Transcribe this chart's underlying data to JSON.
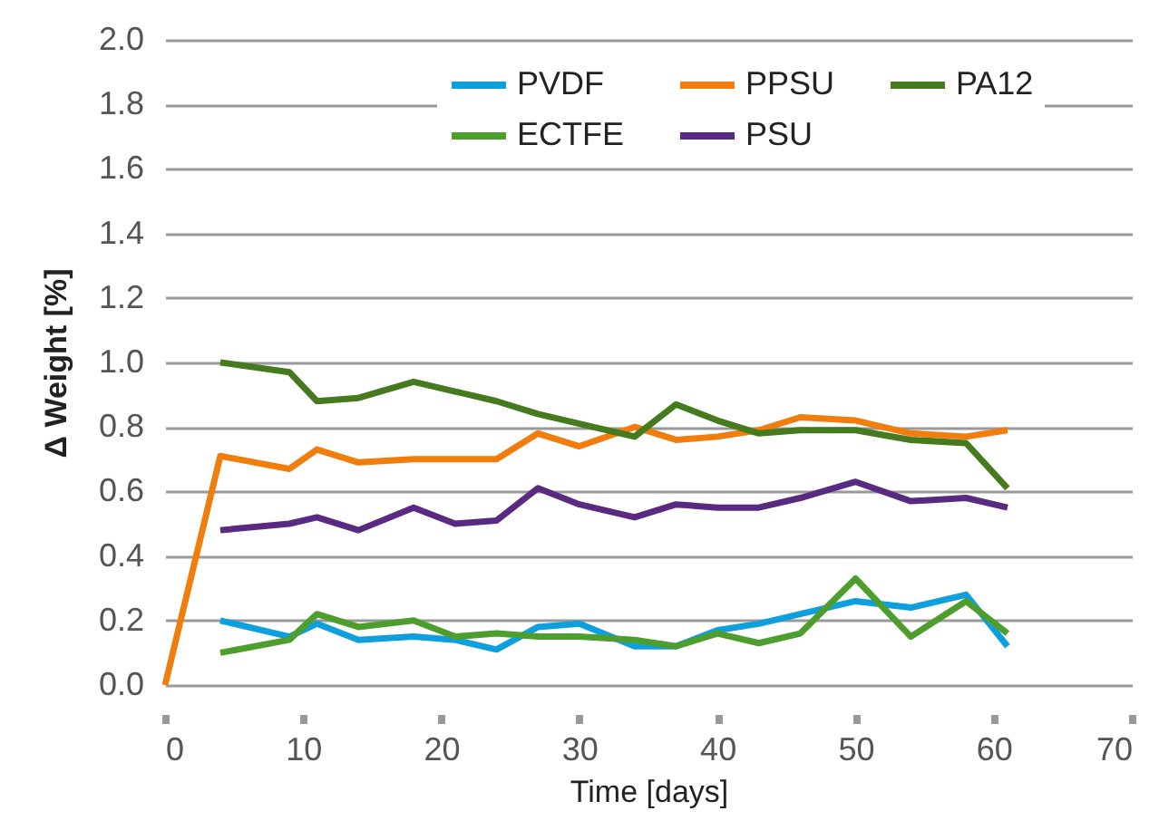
{
  "chart_data": {
    "type": "line",
    "xlabel": "Time [days]",
    "ylabel": "Δ Weight [%]",
    "xlim": [
      0,
      70
    ],
    "xticks": [
      0,
      10,
      20,
      30,
      40,
      50,
      60,
      70
    ],
    "ylim": [
      0,
      2
    ],
    "yticks": [
      {
        "value": 0,
        "label": "0.0"
      },
      {
        "value": 0.2,
        "label": "0.2"
      },
      {
        "value": 0.4,
        "label": "0.4"
      },
      {
        "value": 0.6,
        "label": "0.6"
      },
      {
        "value": 0.8,
        "label": "0.8"
      },
      {
        "value": 1,
        "label": "1.0"
      },
      {
        "value": 1.2,
        "label": "1.2"
      },
      {
        "value": 1.4,
        "label": "1.4"
      },
      {
        "value": 1.6,
        "label": "1.6"
      },
      {
        "value": 1.8,
        "label": "1.8"
      },
      {
        "value": 2,
        "label": "2.0"
      }
    ],
    "grid": "y",
    "legend": "top",
    "marker": "none",
    "series": [
      {
        "name": "PVDF",
        "color": "#0ea0dc",
        "x": [
          4,
          9,
          11,
          14,
          18,
          21,
          24,
          27,
          30,
          34,
          37,
          40,
          43,
          46,
          50,
          54,
          58,
          61
        ],
        "values": [
          0.2,
          0.15,
          0.19,
          0.14,
          0.15,
          0.14,
          0.11,
          0.18,
          0.19,
          0.12,
          0.12,
          0.17,
          0.19,
          0.22,
          0.26,
          0.24,
          0.28,
          0.12
        ]
      },
      {
        "name": "PPSU",
        "color": "#f07d0c",
        "x": [
          0,
          4,
          9,
          11,
          14,
          18,
          21,
          24,
          27,
          30,
          34,
          37,
          40,
          43,
          46,
          50,
          54,
          58,
          61
        ],
        "values": [
          0,
          0.71,
          0.67,
          0.73,
          0.69,
          0.7,
          0.7,
          0.7,
          0.78,
          0.74,
          0.8,
          0.76,
          0.77,
          0.79,
          0.83,
          0.82,
          0.78,
          0.77,
          0.79
        ]
      },
      {
        "name": "PA12",
        "color": "#457a1f",
        "x": [
          4,
          9,
          11,
          14,
          18,
          21,
          24,
          27,
          30,
          34,
          37,
          40,
          43,
          46,
          50,
          54,
          58,
          61
        ],
        "values": [
          1,
          0.97,
          0.88,
          0.89,
          0.94,
          0.91,
          0.88,
          0.84,
          0.81,
          0.77,
          0.87,
          0.82,
          0.78,
          0.79,
          0.79,
          0.76,
          0.75,
          0.61
        ]
      },
      {
        "name": "ECTFE",
        "color": "#4e9e2e",
        "x": [
          4,
          9,
          11,
          14,
          18,
          21,
          24,
          27,
          30,
          34,
          37,
          40,
          43,
          46,
          50,
          54,
          58,
          61
        ],
        "values": [
          0.1,
          0.14,
          0.22,
          0.18,
          0.2,
          0.15,
          0.16,
          0.15,
          0.15,
          0.14,
          0.12,
          0.16,
          0.13,
          0.16,
          0.33,
          0.15,
          0.26,
          0.16
        ]
      },
      {
        "name": "PSU",
        "color": "#5a2a83",
        "x": [
          4,
          9,
          11,
          14,
          18,
          21,
          24,
          27,
          30,
          34,
          37,
          40,
          43,
          46,
          50,
          54,
          58,
          61
        ],
        "values": [
          0.48,
          0.5,
          0.52,
          0.48,
          0.55,
          0.5,
          0.51,
          0.61,
          0.56,
          0.52,
          0.56,
          0.55,
          0.55,
          0.58,
          0.63,
          0.57,
          0.58,
          0.55
        ]
      }
    ]
  }
}
